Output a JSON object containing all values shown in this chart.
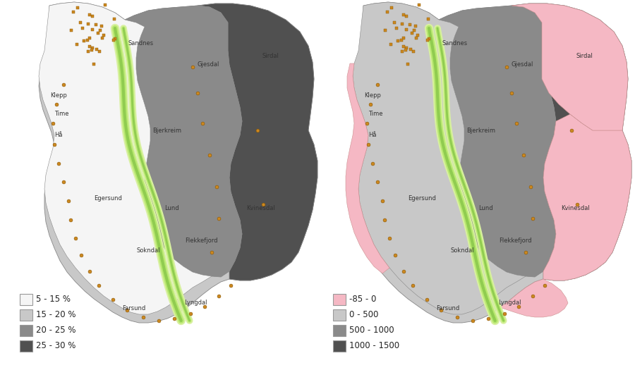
{
  "background_color": "#ffffff",
  "fig_width": 9.0,
  "fig_height": 5.25,
  "dpi": 100,
  "left_legend": {
    "items": [
      {
        "label": "5 - 15 %",
        "color": "#f5f5f5",
        "edgecolor": "#999999"
      },
      {
        "label": "15 - 20 %",
        "color": "#c8c8c8",
        "edgecolor": "#999999"
      },
      {
        "label": "20 - 25 %",
        "color": "#8a8a8a",
        "edgecolor": "#999999"
      },
      {
        "label": "25 - 30 %",
        "color": "#505050",
        "edgecolor": "#999999"
      }
    ]
  },
  "right_legend": {
    "items": [
      {
        "label": "-85 - 0",
        "color": "#f5b8c4",
        "edgecolor": "#999999"
      },
      {
        "label": "0 - 500",
        "color": "#c8c8c8",
        "edgecolor": "#999999"
      },
      {
        "label": "500 - 1000",
        "color": "#8a8a8a",
        "edgecolor": "#999999"
      },
      {
        "label": "1000 - 1500",
        "color": "#505050",
        "edgecolor": "#999999"
      }
    ]
  }
}
